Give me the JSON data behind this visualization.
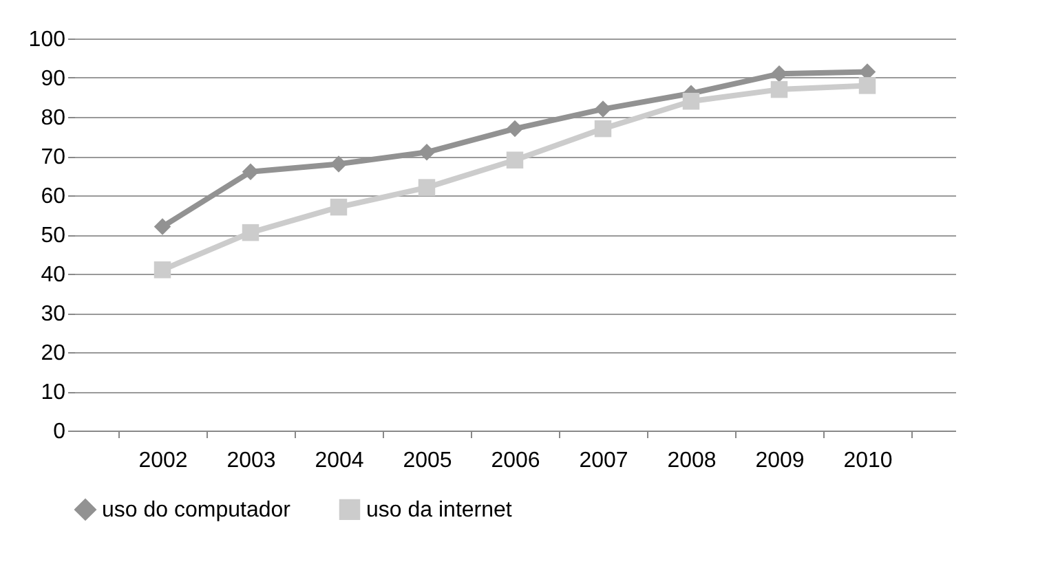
{
  "chart_data": {
    "type": "line",
    "categories": [
      "2002",
      "2003",
      "2004",
      "2005",
      "2006",
      "2007",
      "2008",
      "2009",
      "2010"
    ],
    "series": [
      {
        "name": "uso do computador",
        "color": "#929292",
        "marker": "diamond",
        "values": [
          52,
          66,
          68,
          71,
          77,
          82,
          86,
          91,
          91.5
        ]
      },
      {
        "name": "uso da internet",
        "color": "#cccccc",
        "marker": "square",
        "values": [
          41,
          50.5,
          57,
          62,
          69,
          77,
          84,
          87,
          88
        ]
      }
    ],
    "ylim": [
      0,
      100
    ],
    "yticks": [
      0,
      10,
      20,
      30,
      40,
      50,
      60,
      70,
      80,
      90,
      100
    ],
    "grid": "y",
    "legend": "bottom"
  }
}
